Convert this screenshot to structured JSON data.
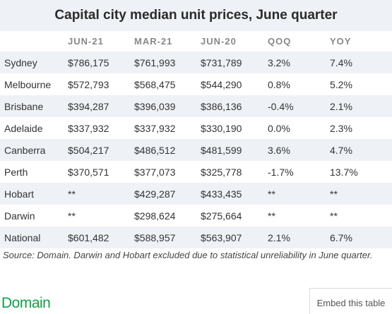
{
  "chart_data": {
    "type": "table",
    "title": "Capital city median unit prices, June quarter",
    "columns": [
      "",
      "JUN-21",
      "MAR-21",
      "JUN-20",
      "QOQ",
      "YOY"
    ],
    "rows": [
      [
        "Sydney",
        "$786,175",
        "$761,993",
        "$731,789",
        "3.2%",
        "7.4%"
      ],
      [
        "Melbourne",
        "$572,793",
        "$568,475",
        "$544,290",
        "0.8%",
        "5.2%"
      ],
      [
        "Brisbane",
        "$394,287",
        "$396,039",
        "$386,136",
        "-0.4%",
        "2.1%"
      ],
      [
        "Adelaide",
        "$337,932",
        "$337,932",
        "$330,190",
        "0.0%",
        "2.3%"
      ],
      [
        "Canberra",
        "$504,217",
        "$486,512",
        "$481,599",
        "3.6%",
        "4.7%"
      ],
      [
        "Perth",
        "$370,571",
        "$377,073",
        "$325,778",
        "-1.7%",
        "13.7%"
      ],
      [
        "Hobart",
        "**",
        "$429,287",
        "$433,435",
        "**",
        "**"
      ],
      [
        "Darwin",
        "**",
        "$298,624",
        "$275,664",
        "**",
        "**"
      ],
      [
        "National",
        "$601,482",
        "$588,957",
        "$563,907",
        "2.1%",
        "6.7%"
      ]
    ],
    "source": "Source: Domain. Darwin and Hobart excluded due to statistical unreliability in June quarter."
  },
  "footer": {
    "logo_text": "Domain",
    "embed_label": "Embed this table"
  },
  "colors": {
    "stripe": "#eef1f6",
    "brand": "#0fa14a"
  }
}
